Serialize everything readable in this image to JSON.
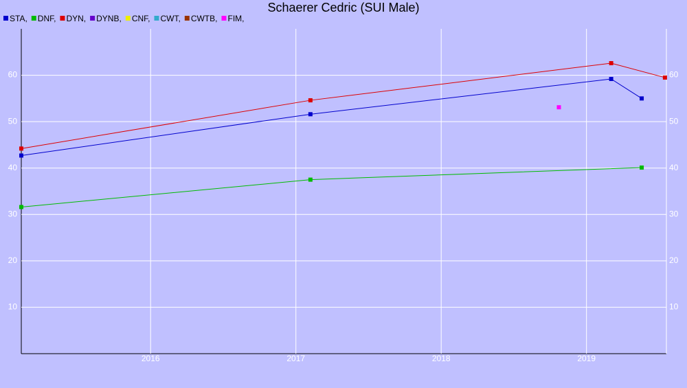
{
  "chart_data": {
    "type": "line",
    "title": "Schaerer Cedric (SUI Male)",
    "xlim": [
      2015.11,
      2019.55
    ],
    "xticks": [
      2016,
      2017,
      2018,
      2019
    ],
    "ylim": [
      0,
      70
    ],
    "yticks": [
      10,
      20,
      30,
      40,
      50,
      60
    ],
    "grid": true,
    "series": [
      {
        "name": "STA,",
        "color": "#0000cc",
        "x": [
          2015.11,
          2017.1,
          2019.17,
          2019.38
        ],
        "values": [
          42.7,
          51.6,
          59.2,
          55.0
        ]
      },
      {
        "name": "DNF,",
        "color": "#00bb00",
        "x": [
          2015.11,
          2017.1,
          2019.38
        ],
        "values": [
          31.6,
          37.5,
          40.1
        ]
      },
      {
        "name": "DYN,",
        "color": "#dd0000",
        "x": [
          2015.11,
          2017.1,
          2019.17,
          2019.54
        ],
        "values": [
          44.2,
          54.6,
          62.6,
          59.5
        ]
      },
      {
        "name": "DYNB,",
        "color": "#6600cc",
        "x": [],
        "values": []
      },
      {
        "name": "CNF,",
        "color": "#eeee00",
        "x": [],
        "values": []
      },
      {
        "name": "CWT,",
        "color": "#33aacc",
        "x": [],
        "values": []
      },
      {
        "name": "CWTB,",
        "color": "#993300",
        "x": [],
        "values": []
      },
      {
        "name": "FIM,",
        "color": "#ff00ff",
        "x": [
          2018.81
        ],
        "values": [
          53.1
        ]
      }
    ]
  }
}
